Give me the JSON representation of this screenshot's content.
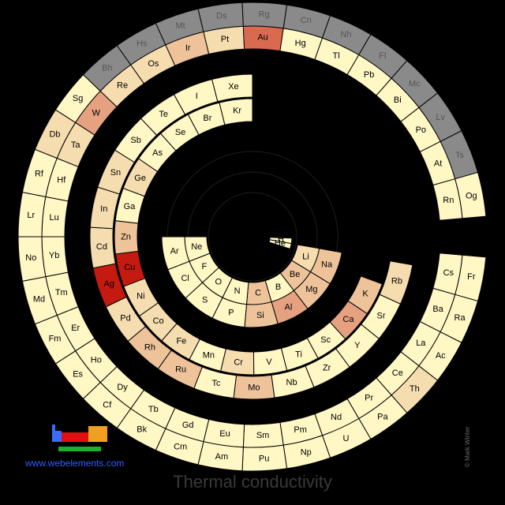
{
  "title": "Thermal conductivity",
  "url": "www.webelements.com",
  "credit": "© Mark Winter",
  "colors": {
    "background": "#000000",
    "unknown": "#8a8a8a",
    "scale": [
      "#fff7c4",
      "#f6ddb0",
      "#eec39a",
      "#e5a180",
      "#d96a50",
      "#c41a10"
    ]
  },
  "rows": [
    [
      "H",
      "He"
    ],
    [
      "Li",
      "Be",
      "B",
      "C",
      "N",
      "O",
      "F",
      "Ne"
    ],
    [
      "Na",
      "Mg",
      "Al",
      "Si",
      "P",
      "S",
      "Cl",
      "Ar"
    ],
    [
      "K",
      "Ca",
      "Sc",
      "Ti",
      "V",
      "Cr",
      "Mn",
      "Fe",
      "Co",
      "Ni",
      "Cu",
      "Zn",
      "Ga",
      "Ge",
      "As",
      "Se",
      "Br",
      "Kr"
    ],
    [
      "Rb",
      "Sr",
      "Y",
      "Zr",
      "Nb",
      "Mo",
      "Tc",
      "Ru",
      "Rh",
      "Pd",
      "Ag",
      "Cd",
      "In",
      "Sn",
      "Sb",
      "Te",
      "I",
      "Xe"
    ],
    [
      "Cs",
      "Ba",
      "La",
      "Ce",
      "Pr",
      "Nd",
      "Pm",
      "Sm",
      "Eu",
      "Gd",
      "Tb",
      "Dy",
      "Ho",
      "Er",
      "Tm",
      "Yb",
      "Lu",
      "Hf",
      "Ta",
      "W",
      "Re",
      "Os",
      "Ir",
      "Pt",
      "Au",
      "Hg",
      "Tl",
      "Pb",
      "Bi",
      "Po",
      "At",
      "Rn"
    ],
    [
      "Fr",
      "Ra",
      "Ac",
      "Th",
      "Pa",
      "U",
      "Np",
      "Pu",
      "Am",
      "Cm",
      "Bk",
      "Cf",
      "Es",
      "Fm",
      "Md",
      "No",
      "Lr",
      "Rf",
      "Db",
      "Sg",
      "Bh",
      "Hs",
      "Mt",
      "Ds",
      "Rg",
      "Cn",
      "Nh",
      "Fl",
      "Mc",
      "Lv",
      "Ts",
      "Og"
    ]
  ],
  "level": {
    "H": 0,
    "He": 0,
    "Li": 1,
    "Be": 2,
    "B": 0,
    "C": 2,
    "N": 0,
    "O": 0,
    "F": 0,
    "Ne": 0,
    "Na": 2,
    "Mg": 2,
    "Al": 3,
    "Si": 2,
    "P": 0,
    "S": 0,
    "Cl": 0,
    "Ar": 0,
    "K": 2,
    "Ca": 3,
    "Sc": 0,
    "Ti": 0,
    "V": 0,
    "Cr": 1,
    "Mn": 0,
    "Fe": 1,
    "Co": 1,
    "Ni": 1,
    "Cu": 5,
    "Zn": 2,
    "Ga": 0,
    "Ge": 1,
    "As": 0,
    "Se": 0,
    "Br": 0,
    "Kr": 0,
    "Rb": 1,
    "Sr": 0,
    "Y": 0,
    "Zr": 0,
    "Nb": 0,
    "Mo": 2,
    "Tc": 0,
    "Ru": 2,
    "Rh": 2,
    "Pd": 1,
    "Ag": 5,
    "Cd": 1,
    "In": 1,
    "Sn": 1,
    "Sb": 0,
    "Te": 0,
    "I": 0,
    "Xe": 0,
    "Cs": 0,
    "Ba": 0,
    "La": 0,
    "Ce": 0,
    "Pr": 0,
    "Nd": 0,
    "Pm": 0,
    "Sm": 0,
    "Eu": 0,
    "Gd": 0,
    "Tb": 0,
    "Dy": 0,
    "Ho": 0,
    "Er": 0,
    "Tm": 0,
    "Yb": 0,
    "Lu": 0,
    "Hf": 0,
    "Ta": 1,
    "W": 3,
    "Re": 1,
    "Os": 1,
    "Ir": 2,
    "Pt": 1,
    "Au": 4,
    "Hg": 0,
    "Tl": 0,
    "Pb": 0,
    "Bi": 0,
    "Po": 0,
    "At": 0,
    "Rn": 0,
    "Fr": 0,
    "Ra": 0,
    "Ac": 0,
    "Th": 1,
    "Pa": 0,
    "U": 0,
    "Np": 0,
    "Pu": 0,
    "Am": 0,
    "Cm": 0,
    "Bk": 0,
    "Cf": 0,
    "Es": 0,
    "Fm": 0,
    "Md": 0,
    "No": 0,
    "Lr": 0,
    "Rf": 0,
    "Db": 1,
    "Sg": 0,
    "Bh": -1,
    "Hs": -1,
    "Mt": -1,
    "Ds": -1,
    "Rg": -1,
    "Cn": -1,
    "Nh": -1,
    "Fl": -1,
    "Mc": -1,
    "Lv": -1,
    "Ts": -1,
    "Og": 0
  }
}
